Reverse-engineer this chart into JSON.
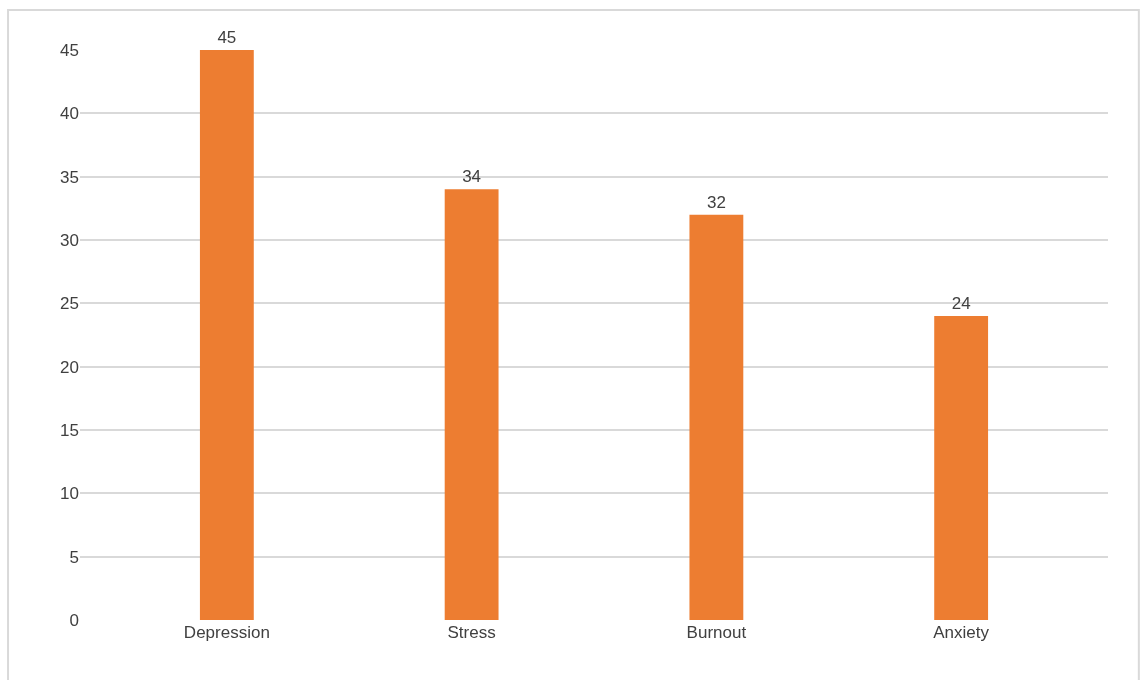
{
  "chart_data": {
    "type": "bar",
    "categories": [
      "Depression",
      "Stress",
      "Burnout",
      "Anxiety"
    ],
    "values": [
      45,
      34,
      32,
      24
    ],
    "color": "#ed7d31",
    "ylim": [
      0,
      45
    ],
    "yticks": [
      0,
      5,
      10,
      15,
      20,
      25,
      30,
      35,
      40,
      45
    ],
    "grid": "y",
    "data_labels": true
  }
}
